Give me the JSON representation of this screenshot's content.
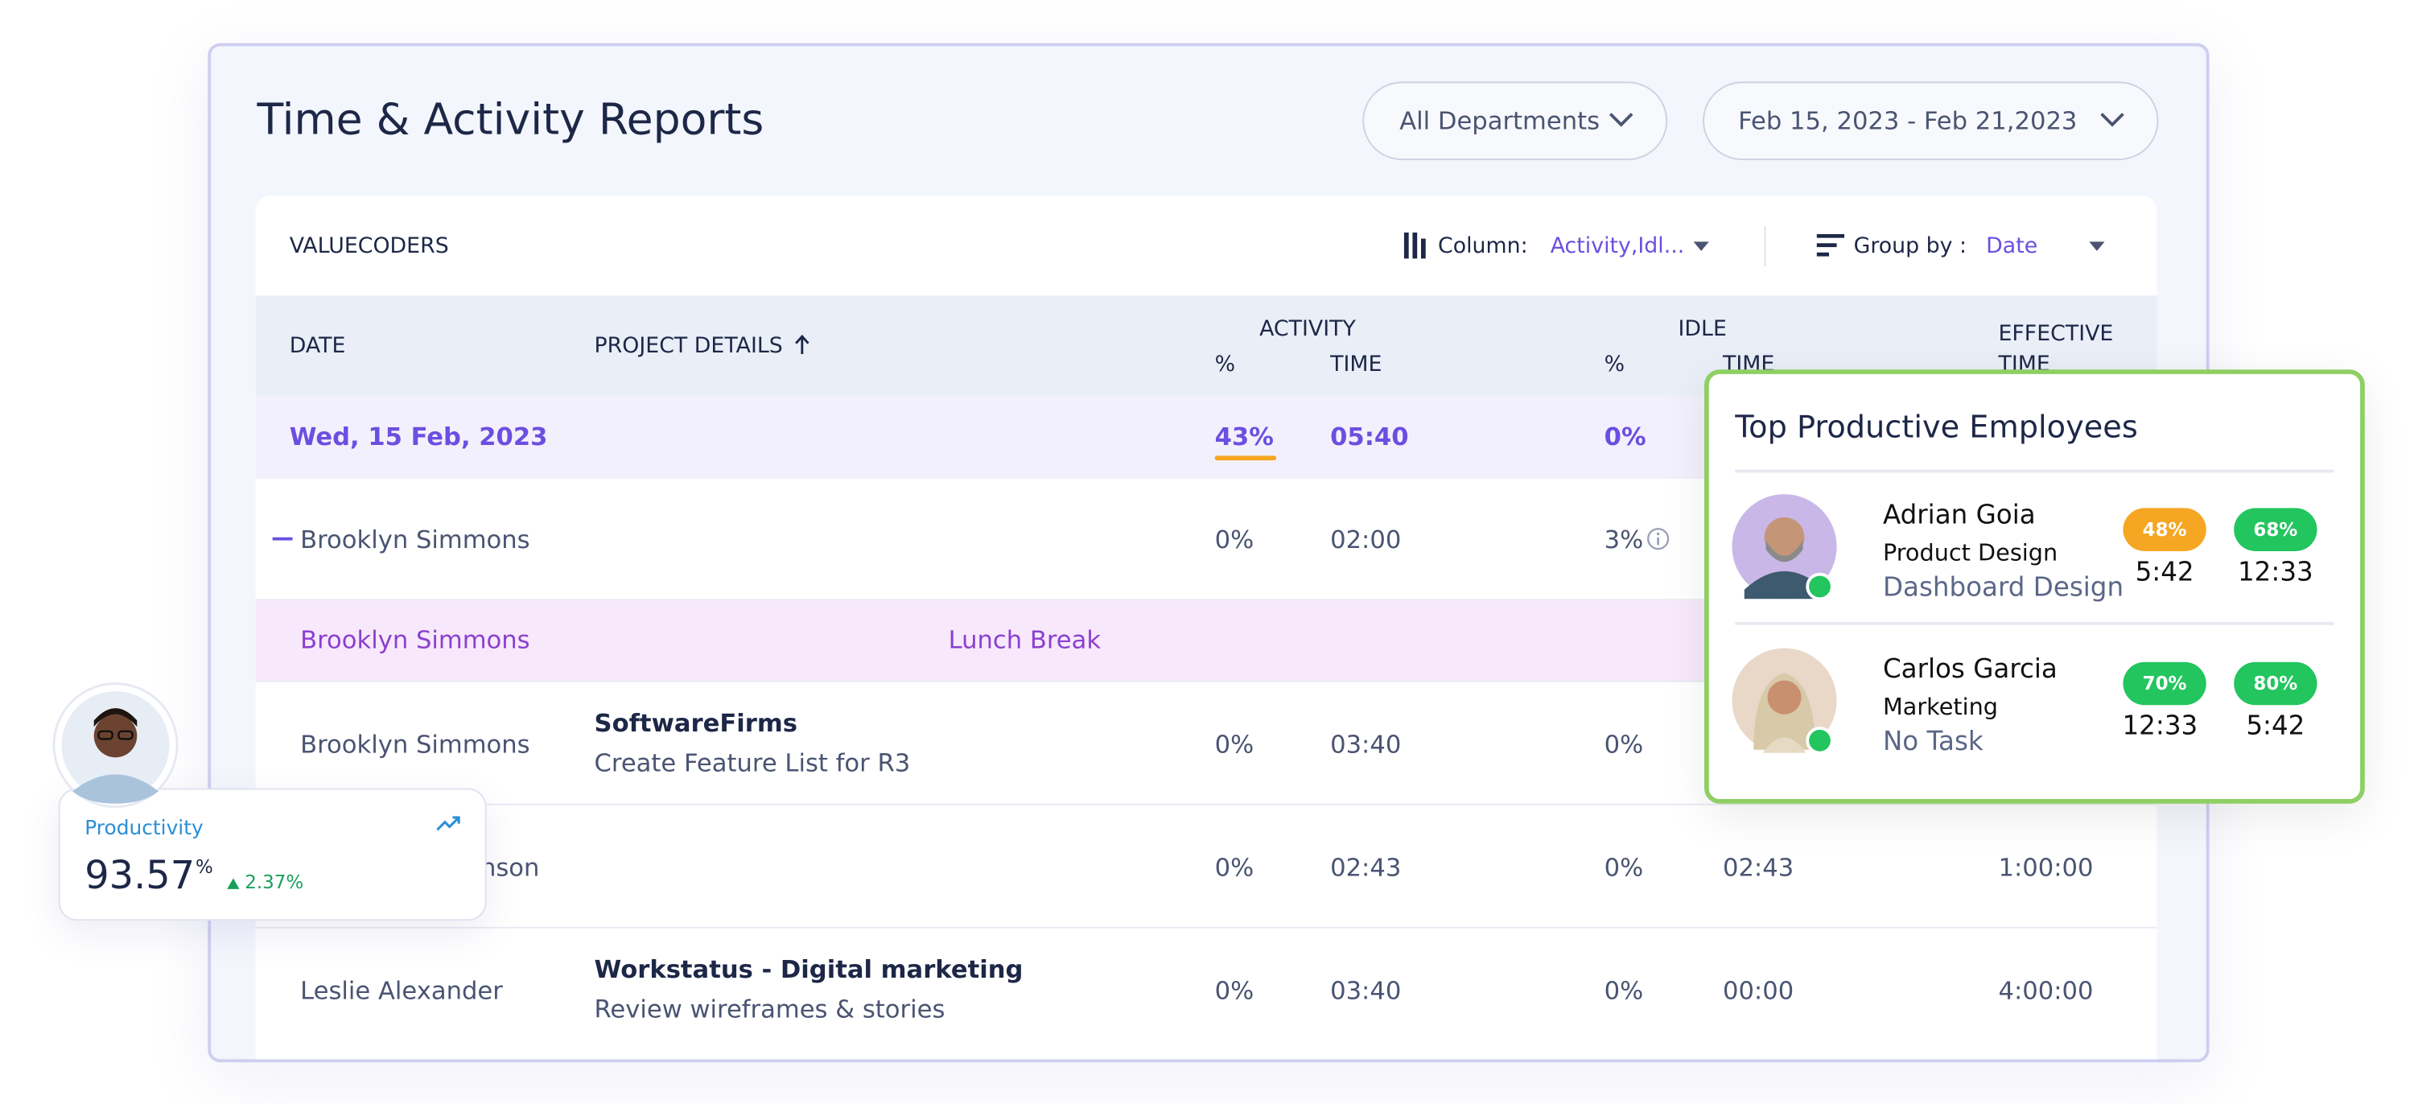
{
  "header": {
    "title": "Time & Activity Reports",
    "departments": "All Departments",
    "date_range": "Feb 15, 2023 - Feb 21,2023"
  },
  "toolbar": {
    "company": "VALUECODERS",
    "column_label": "Column:",
    "column_value": "Activity,Idl...",
    "group_label": "Group by :",
    "group_value": "Date"
  },
  "table": {
    "headers": {
      "date": "DATE",
      "project": "PROJECT DETAILS",
      "activity": "ACTIVITY",
      "activity_pct": "%",
      "activity_time": "TIME",
      "idle": "IDLE",
      "idle_pct": "%",
      "idle_time": "TIME",
      "effective": "EFFECTIVE TIME"
    },
    "group_row": {
      "date": "Wed, 15 Feb, 2023",
      "activity_pct": "43%",
      "activity_time": "05:40",
      "idle_pct": "0%"
    },
    "rows": [
      {
        "name": "Brooklyn Simmons",
        "activity_pct": "0%",
        "activity_time": "02:00",
        "idle_pct": "3%"
      },
      {
        "name": "Brooklyn Simmons",
        "project": "Lunch Break"
      },
      {
        "name": "Brooklyn Simmons",
        "project_title": "SoftwareFirms",
        "project_task": "Create Feature List for R3",
        "activity_pct": "0%",
        "activity_time": "03:40",
        "idle_pct": "0%"
      },
      {
        "name": "nson",
        "activity_pct": "0%",
        "activity_time": "02:43",
        "idle_pct": "0%",
        "idle_time": "02:43",
        "effective": "1:00:00"
      },
      {
        "name": "Leslie Alexander",
        "project_title": "Workstatus - Digital marketing",
        "project_task": "Review wireframes & stories",
        "activity_pct": "0%",
        "activity_time": "03:40",
        "idle_pct": "0%",
        "idle_time": "00:00",
        "effective": "4:00:00"
      }
    ]
  },
  "top_employees": {
    "title": "Top Productive Employees",
    "employees": [
      {
        "name": "Adrian Goia",
        "department": "Product Design",
        "task": "Dashboard Design",
        "badge1": "48%",
        "time1": "5:42",
        "badge2": "68%",
        "time2": "12:33"
      },
      {
        "name": "Carlos Garcia",
        "department": "Marketing",
        "task": "No Task",
        "badge1": "70%",
        "time1": "12:33",
        "badge2": "80%",
        "time2": "5:42"
      }
    ]
  },
  "productivity": {
    "label": "Productivity",
    "value": "93.57",
    "unit": "%",
    "change": "2.37%"
  }
}
